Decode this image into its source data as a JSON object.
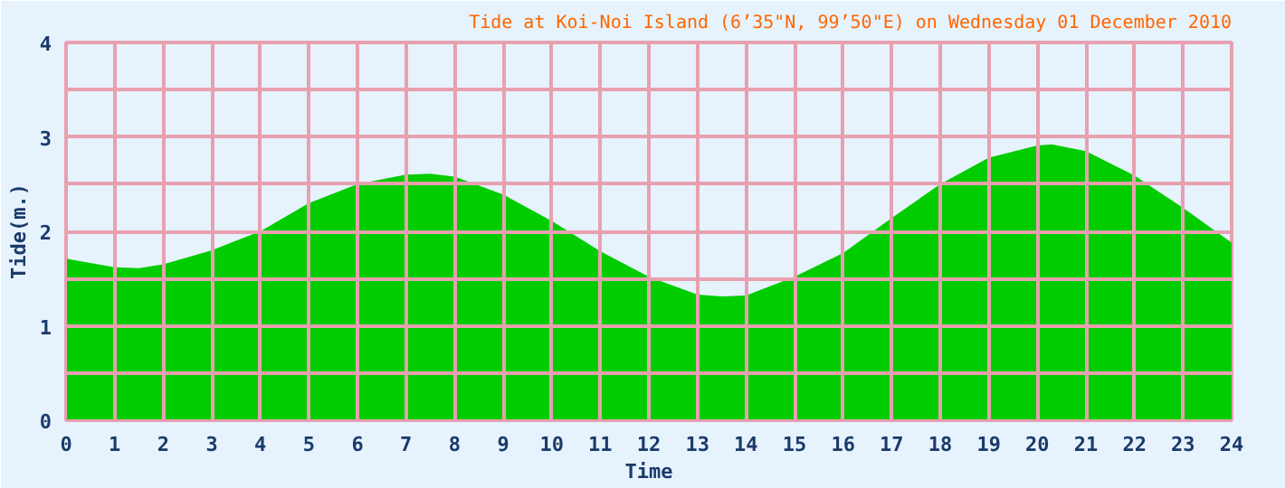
{
  "chart_data": {
    "type": "area",
    "title": "Tide at Koi-Noi Island (6’35\"N, 99’50\"E) on Wednesday 01 December 2010",
    "xlabel": "Time",
    "ylabel": "Tide(m.)",
    "x": [
      0,
      1,
      1.5,
      2,
      3,
      4,
      5,
      6,
      7,
      7.5,
      8,
      9,
      10,
      11,
      12,
      13,
      13.5,
      14,
      15,
      16,
      17,
      18,
      19,
      20,
      20.3,
      21,
      22,
      23,
      24
    ],
    "series": [
      {
        "color": "#00cc00",
        "values": [
          1.71,
          1.62,
          1.61,
          1.65,
          1.8,
          2.0,
          2.3,
          2.5,
          2.6,
          2.61,
          2.58,
          2.39,
          2.11,
          1.79,
          1.52,
          1.33,
          1.31,
          1.32,
          1.52,
          1.77,
          2.14,
          2.5,
          2.78,
          2.91,
          2.92,
          2.85,
          2.59,
          2.25,
          1.88
        ]
      }
    ],
    "xlim": [
      0,
      24
    ],
    "xticks": [
      0,
      1,
      2,
      3,
      4,
      5,
      6,
      7,
      8,
      9,
      10,
      11,
      12,
      13,
      14,
      15,
      16,
      17,
      18,
      19,
      20,
      21,
      22,
      23,
      24
    ],
    "ylim": [
      0,
      4
    ],
    "yticks": [
      0,
      {
        "value": 0.5,
        "label": null
      },
      1,
      {
        "value": 1.5,
        "label": null
      },
      2,
      {
        "value": 2.5,
        "label": null
      },
      3,
      {
        "value": 3.5,
        "label": null
      },
      4
    ],
    "grid": true
  }
}
